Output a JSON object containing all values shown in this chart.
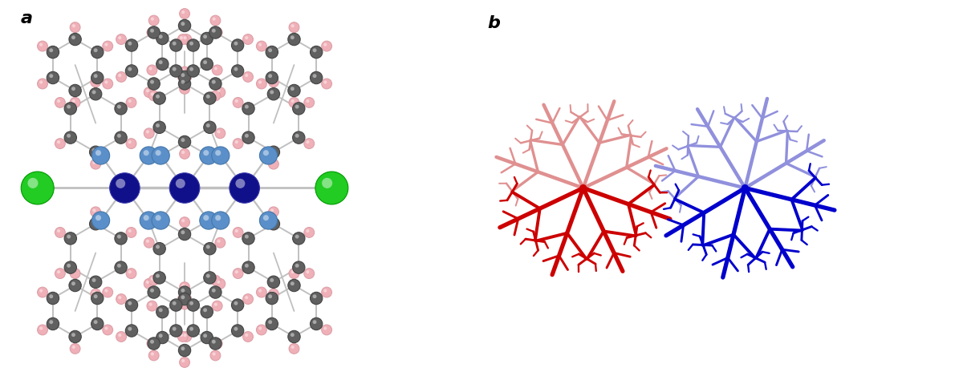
{
  "figure_width": 11.95,
  "figure_height": 4.69,
  "dpi": 100,
  "label_a": "a",
  "label_b": "b",
  "label_fontsize": 16,
  "background_color": "#ffffff",
  "cobalt_dark_color": "#10108a",
  "cobalt_light_color": "#5b8fc9",
  "nitrogen_color": "#5b8fc9",
  "chlorine_color": "#22cc22",
  "carbon_color": "#606060",
  "hydrogen_color": "#f0b0b8",
  "bond_color": "#c0c0c0",
  "red_dark": "#cc0000",
  "red_light": "#e09090",
  "blue_dark": "#0000cc",
  "blue_light": "#9090dd",
  "panel_split": 0.385
}
